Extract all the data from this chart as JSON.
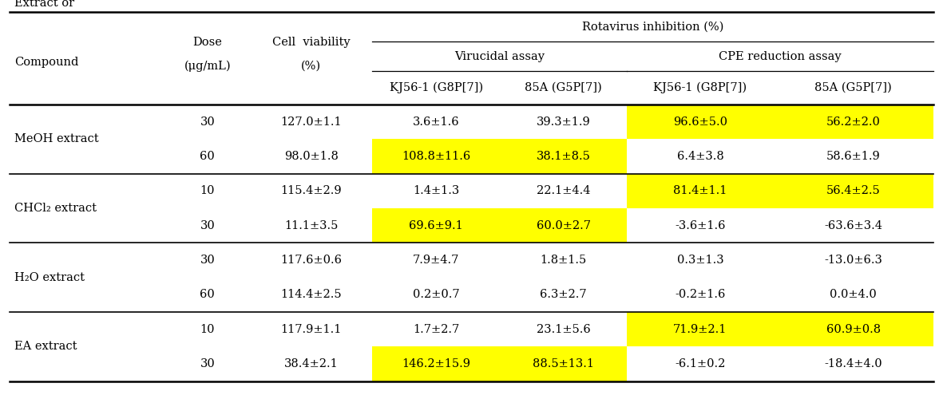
{
  "title": "Rotavirus inhibition (%)",
  "subheader_virucidal": "Virucidal assay",
  "subheader_cpe": "CPE reduction assay",
  "rows": [
    {
      "group": "MeOH extract",
      "dose": "30",
      "viability": "127.0±1.1",
      "virucidal_kj": "3.6±1.6",
      "virucidal_85": "39.3±1.9",
      "cpe_kj": "96.6±5.0",
      "cpe_85": "56.2±2.0",
      "highlight_virucidal": false,
      "highlight_cpe": true
    },
    {
      "group": "",
      "dose": "60",
      "viability": "98.0±1.8",
      "virucidal_kj": "108.8±11.6",
      "virucidal_85": "38.1±8.5",
      "cpe_kj": "6.4±3.8",
      "cpe_85": "58.6±1.9",
      "highlight_virucidal": true,
      "highlight_cpe": false
    },
    {
      "group": "CHCl₂ extract",
      "dose": "10",
      "viability": "115.4±2.9",
      "virucidal_kj": "1.4±1.3",
      "virucidal_85": "22.1±4.4",
      "cpe_kj": "81.4±1.1",
      "cpe_85": "56.4±2.5",
      "highlight_virucidal": false,
      "highlight_cpe": true
    },
    {
      "group": "",
      "dose": "30",
      "viability": "11.1±3.5",
      "virucidal_kj": "69.6±9.1",
      "virucidal_85": "60.0±2.7",
      "cpe_kj": "-3.6±1.6",
      "cpe_85": "-63.6±3.4",
      "highlight_virucidal": true,
      "highlight_cpe": false
    },
    {
      "group": "H₂O extract",
      "dose": "30",
      "viability": "117.6±0.6",
      "virucidal_kj": "7.9±4.7",
      "virucidal_85": "1.8±1.5",
      "cpe_kj": "0.3±1.3",
      "cpe_85": "-13.0±6.3",
      "highlight_virucidal": false,
      "highlight_cpe": false
    },
    {
      "group": "",
      "dose": "60",
      "viability": "114.4±2.5",
      "virucidal_kj": "0.2±0.7",
      "virucidal_85": "6.3±2.7",
      "cpe_kj": "-0.2±1.6",
      "cpe_85": "0.0±4.0",
      "highlight_virucidal": false,
      "highlight_cpe": false
    },
    {
      "group": "EA extract",
      "dose": "10",
      "viability": "117.9±1.1",
      "virucidal_kj": "1.7±2.7",
      "virucidal_85": "23.1±5.6",
      "cpe_kj": "71.9±2.1",
      "cpe_85": "60.9±0.8",
      "highlight_virucidal": false,
      "highlight_cpe": true
    },
    {
      "group": "",
      "dose": "30",
      "viability": "38.4±2.1",
      "virucidal_kj": "146.2±15.9",
      "virucidal_85": "88.5±13.1",
      "cpe_kj": "-6.1±0.2",
      "cpe_85": "-18.4±4.0",
      "highlight_virucidal": true,
      "highlight_cpe": false
    }
  ],
  "group_separator_after": [
    1,
    3,
    5
  ],
  "highlight_color": "#FFFF00",
  "bg_color": "#FFFFFF",
  "text_color": "#000000",
  "font_size": 10.5,
  "header_font_size": 10.5
}
